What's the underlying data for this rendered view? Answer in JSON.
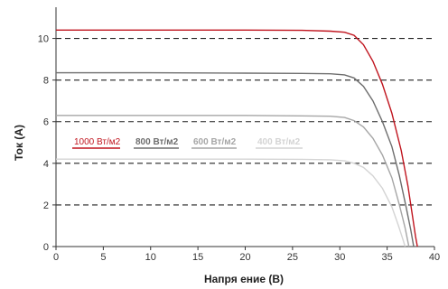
{
  "chart_data": {
    "type": "line",
    "title": "",
    "xlabel": "Напря   ение (В)",
    "ylabel": "Ток (А)",
    "xlim": [
      0,
      40
    ],
    "ylim": [
      0,
      11.5
    ],
    "x_ticks": [
      "0",
      "5",
      "10",
      "15",
      "20",
      "25",
      "30",
      "35",
      "40"
    ],
    "y_ticks": [
      "0",
      "2",
      "4",
      "6",
      "8",
      "10"
    ],
    "grid": "horizontal dashed",
    "legend_placement": "inside, middle-left",
    "series": [
      {
        "name": "1000 Вт/м2",
        "color": "#c0141e",
        "points": [
          [
            0,
            10.4
          ],
          [
            10,
            10.4
          ],
          [
            20,
            10.4
          ],
          [
            26,
            10.39
          ],
          [
            29,
            10.35
          ],
          [
            30.5,
            10.3
          ],
          [
            31.5,
            10.15
          ],
          [
            32.5,
            9.7
          ],
          [
            33.5,
            8.9
          ],
          [
            34.5,
            7.8
          ],
          [
            35.5,
            6.4
          ],
          [
            36.5,
            4.6
          ],
          [
            37.2,
            2.9
          ],
          [
            37.7,
            1.4
          ],
          [
            38.0,
            0.5
          ],
          [
            38.2,
            0
          ]
        ]
      },
      {
        "name": "800 Вт/м2",
        "color": "#6e6e6e",
        "points": [
          [
            0,
            8.35
          ],
          [
            10,
            8.35
          ],
          [
            20,
            8.33
          ],
          [
            26,
            8.32
          ],
          [
            29,
            8.3
          ],
          [
            30.5,
            8.25
          ],
          [
            31.5,
            8.1
          ],
          [
            32.5,
            7.7
          ],
          [
            33.5,
            7.0
          ],
          [
            34.5,
            6.0
          ],
          [
            35.5,
            4.8
          ],
          [
            36.3,
            3.4
          ],
          [
            37.0,
            1.9
          ],
          [
            37.5,
            0.8
          ],
          [
            37.8,
            0
          ]
        ]
      },
      {
        "name": "600 Вт/м2",
        "color": "#a6a6a6",
        "points": [
          [
            0,
            6.3
          ],
          [
            10,
            6.3
          ],
          [
            20,
            6.3
          ],
          [
            26,
            6.28
          ],
          [
            29,
            6.26
          ],
          [
            30.5,
            6.2
          ],
          [
            31.5,
            6.05
          ],
          [
            32.5,
            5.75
          ],
          [
            33.5,
            5.2
          ],
          [
            34.5,
            4.4
          ],
          [
            35.5,
            3.3
          ],
          [
            36.3,
            2.0
          ],
          [
            36.9,
            0.9
          ],
          [
            37.3,
            0
          ]
        ]
      },
      {
        "name": "400 Вт/м2",
        "color": "#d4d4d4",
        "points": [
          [
            0,
            4.2
          ],
          [
            10,
            4.2
          ],
          [
            20,
            4.2
          ],
          [
            26,
            4.19
          ],
          [
            29,
            4.17
          ],
          [
            30.5,
            4.12
          ],
          [
            31.5,
            4.0
          ],
          [
            32.5,
            3.8
          ],
          [
            33.5,
            3.4
          ],
          [
            34.5,
            2.8
          ],
          [
            35.5,
            1.9
          ],
          [
            36.2,
            1.0
          ],
          [
            36.7,
            0.3
          ],
          [
            36.9,
            0
          ]
        ]
      }
    ]
  }
}
